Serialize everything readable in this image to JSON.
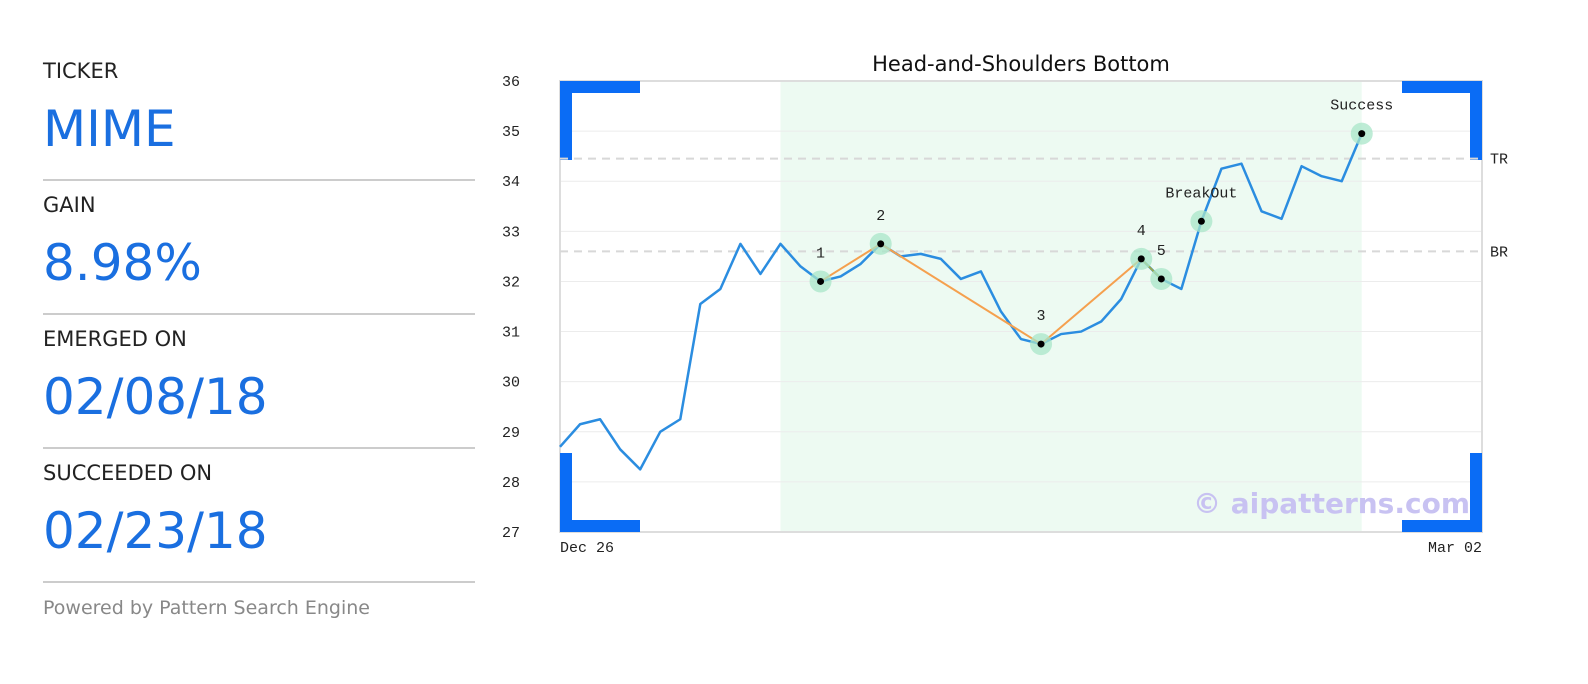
{
  "panel": {
    "fields": [
      {
        "label": "TICKER",
        "value": "MIME"
      },
      {
        "label": "GAIN",
        "value": "8.98%"
      },
      {
        "label": "EMERGED ON",
        "value": "02/08/18"
      },
      {
        "label": "SUCCEEDED ON",
        "value": "02/23/18"
      }
    ],
    "footer": "Powered by Pattern Search Engine"
  },
  "chart_data": {
    "type": "line",
    "title": "Head-and-Shoulders Bottom",
    "categories": [
      "Dec 26",
      null,
      null,
      null,
      null,
      null,
      null,
      null,
      null,
      null,
      null,
      null,
      null,
      null,
      null,
      null,
      null,
      null,
      null,
      null,
      null,
      null,
      null,
      null,
      null,
      null,
      null,
      null,
      null,
      null,
      null,
      null,
      null,
      null,
      null,
      null,
      null,
      null,
      null,
      null,
      null,
      null,
      null,
      null,
      null,
      null,
      "Mar 02"
    ],
    "values": [
      28.7,
      29.15,
      29.25,
      28.65,
      28.25,
      29.0,
      29.25,
      31.55,
      31.85,
      32.75,
      32.15,
      32.75,
      32.3,
      32.0,
      32.1,
      32.35,
      32.75,
      32.5,
      32.55,
      32.45,
      32.05,
      32.2,
      31.4,
      30.85,
      30.75,
      30.95,
      31.0,
      31.2,
      31.65,
      32.45,
      32.05,
      31.85,
      33.2,
      34.25,
      34.35,
      33.4,
      33.25,
      34.3,
      34.1,
      34.0,
      34.95,
      null,
      null,
      null,
      null,
      null,
      null
    ],
    "color": "#2b8de0",
    "ylim": [
      27,
      36
    ],
    "yticks": [
      27,
      28,
      29,
      30,
      31,
      32,
      33,
      34,
      35,
      36
    ],
    "grid": true,
    "highlight": [
      11,
      40
    ],
    "reference_lines": [
      {
        "label": "TR",
        "value": 34.45
      },
      {
        "label": "BR",
        "value": 32.6
      }
    ],
    "annotations": [
      {
        "text": "1",
        "x": 13,
        "y": 32.0
      },
      {
        "text": "2",
        "x": 16,
        "y": 32.75
      },
      {
        "text": "3",
        "x": 24,
        "y": 30.75
      },
      {
        "text": "4",
        "x": 29,
        "y": 32.45
      },
      {
        "text": "5",
        "x": 30,
        "y": 32.05
      },
      {
        "text": "BreakOut",
        "x": 32,
        "y": 33.2
      },
      {
        "text": "Success",
        "x": 40,
        "y": 34.95
      }
    ],
    "pattern_line_colors": [
      "#f5a04e",
      "#f5a04e",
      "#f5a04e",
      "#9aa84e"
    ],
    "watermark": "© aipatterns.com"
  }
}
